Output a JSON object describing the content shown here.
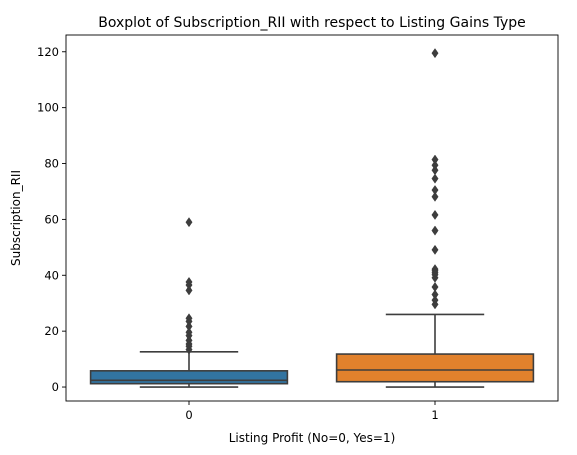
{
  "chart_data": {
    "type": "box",
    "title": "Boxplot of Subscription_RII with respect to Listing Gains Type",
    "xlabel": "Listing Profit (No=0, Yes=1)",
    "ylabel": "Subscription_RII",
    "ylim": [
      -5,
      126
    ],
    "yticks": [
      0,
      20,
      40,
      60,
      80,
      100,
      120
    ],
    "categories": [
      "0",
      "1"
    ],
    "grid": false,
    "boxes": [
      {
        "category": "0",
        "color": "#3274a1",
        "min": 0.0,
        "q1": 1.2,
        "median": 2.4,
        "q3": 5.8,
        "max": 12.6,
        "outliers": [
          13.4,
          14.6,
          15.4,
          16.7,
          18.4,
          19.6,
          21.7,
          23.5,
          24.6,
          34.6,
          36.5,
          37.6,
          59.0
        ]
      },
      {
        "category": "1",
        "color": "#e1812c",
        "min": 0.0,
        "q1": 1.9,
        "median": 6.1,
        "q3": 11.8,
        "max": 26.0,
        "outliers": [
          29.6,
          31.1,
          33.1,
          35.8,
          39.1,
          40.2,
          40.9,
          41.6,
          42.2,
          49.1,
          56.0,
          61.6,
          68.1,
          70.5,
          74.6,
          77.6,
          79.4,
          81.4,
          119.5
        ]
      }
    ]
  }
}
